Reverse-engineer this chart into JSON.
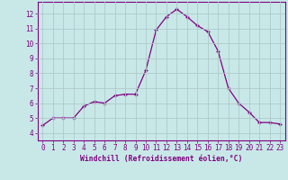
{
  "x": [
    0,
    1,
    2,
    3,
    4,
    5,
    6,
    7,
    8,
    9,
    10,
    11,
    12,
    13,
    14,
    15,
    16,
    17,
    18,
    19,
    20,
    21,
    22,
    23
  ],
  "y": [
    4.5,
    5.0,
    5.0,
    5.0,
    5.8,
    6.1,
    6.0,
    6.5,
    6.6,
    6.6,
    8.2,
    10.9,
    11.8,
    12.3,
    11.8,
    11.2,
    10.8,
    9.5,
    7.0,
    6.0,
    5.4,
    4.7,
    4.7,
    4.6
  ],
  "line_color": "#800080",
  "marker": "+",
  "background_color": "#c8e8e8",
  "grid_color": "#b0c8c8",
  "xlabel": "Windchill (Refroidissement éolien,°C)",
  "xlim": [
    -0.5,
    23.5
  ],
  "ylim": [
    3.5,
    12.8
  ],
  "yticks": [
    4,
    5,
    6,
    7,
    8,
    9,
    10,
    11,
    12
  ],
  "xticks": [
    0,
    1,
    2,
    3,
    4,
    5,
    6,
    7,
    8,
    9,
    10,
    11,
    12,
    13,
    14,
    15,
    16,
    17,
    18,
    19,
    20,
    21,
    22,
    23
  ],
  "tick_color": "#800080",
  "label_color": "#800080",
  "spine_color": "#800080"
}
